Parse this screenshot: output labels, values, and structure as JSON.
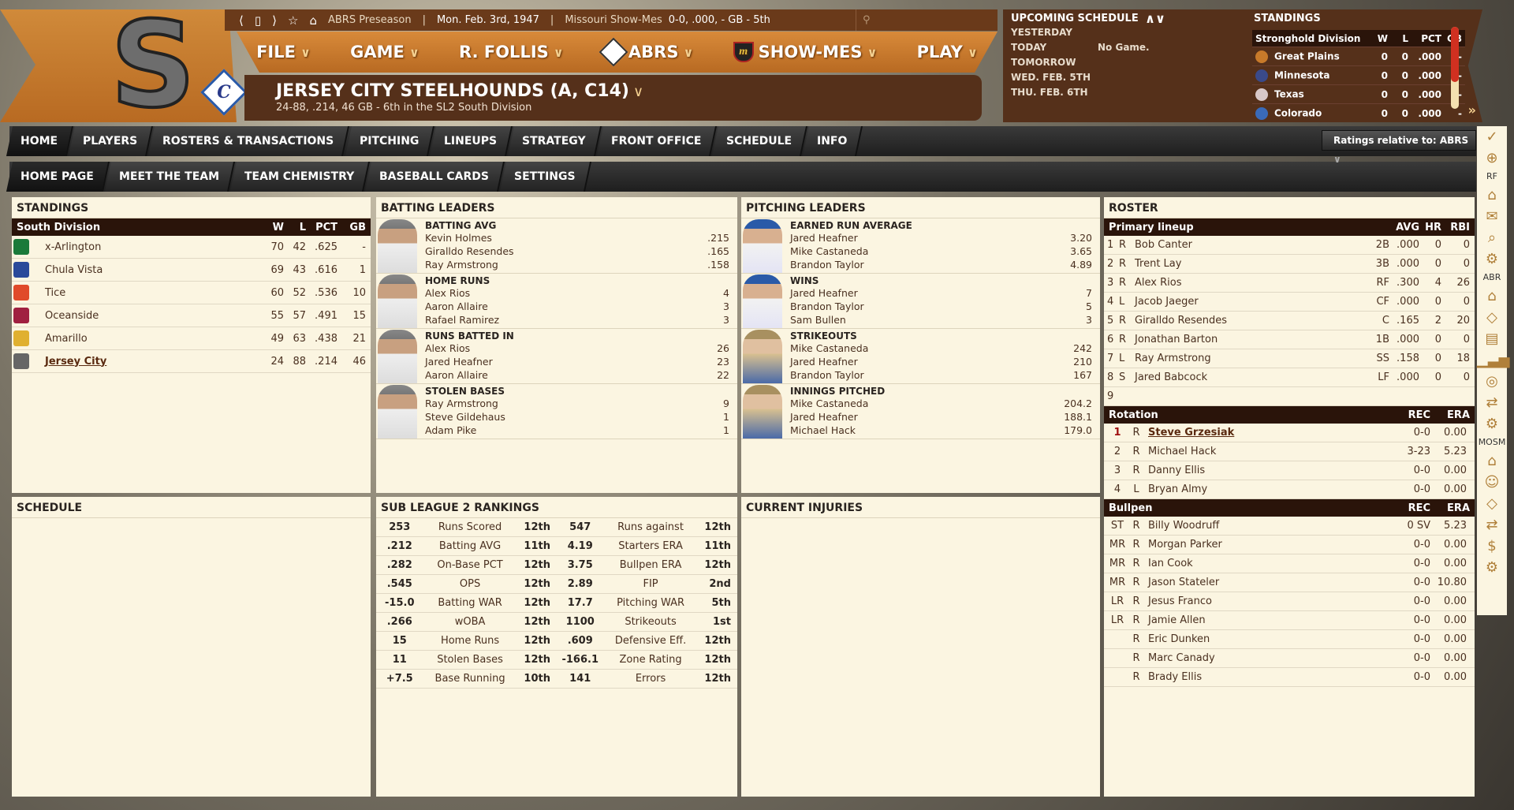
{
  "topbar": {
    "season": "ABRS Preseason",
    "date": "Mon. Feb. 3rd, 1947",
    "team": "Missouri Show-Mes",
    "record": "0-0, .000, - GB - 5th",
    "icons": [
      "back-icon",
      "page-icon",
      "forward-icon",
      "star-icon",
      "home-icon",
      "search-icon"
    ]
  },
  "logos": {
    "team_logo": "S",
    "affiliate_logo": "C"
  },
  "menu": [
    {
      "label": "FILE"
    },
    {
      "label": "GAME"
    },
    {
      "label": "R. FOLLIS"
    },
    {
      "label": "ABRS",
      "logo": "A"
    },
    {
      "label": "SHOW-MES",
      "logo": "M"
    },
    {
      "label": "PLAY"
    }
  ],
  "team": {
    "name": "JERSEY CITY STEELHOUNDS (A, C14)",
    "summary": "24-88, .214, 46 GB - 6th in the SL2 South Division"
  },
  "upcoming": {
    "title": "UPCOMING SCHEDULE",
    "rows": [
      {
        "day": "YESTERDAY",
        "game": ""
      },
      {
        "day": "TODAY",
        "game": "No Game."
      },
      {
        "day": "TOMORROW",
        "game": ""
      },
      {
        "day": "WED. FEB. 5TH",
        "game": ""
      },
      {
        "day": "THU. FEB. 6TH",
        "game": ""
      }
    ]
  },
  "mini_standings": {
    "title": "STANDINGS",
    "division": "Stronghold Division",
    "cols": [
      "W",
      "L",
      "PCT",
      "GB"
    ],
    "rows": [
      {
        "team": "Great Plains",
        "w": "0",
        "l": "0",
        "pct": ".000",
        "gb": "-",
        "color": "#c87a2a"
      },
      {
        "team": "Minnesota",
        "w": "0",
        "l": "0",
        "pct": ".000",
        "gb": "-",
        "color": "#3a4a8a"
      },
      {
        "team": "Texas",
        "w": "0",
        "l": "0",
        "pct": ".000",
        "gb": "-",
        "color": "#d8c8c8"
      },
      {
        "team": "Colorado",
        "w": "0",
        "l": "0",
        "pct": ".000",
        "gb": "-",
        "color": "#3a6ab8"
      }
    ]
  },
  "nav": {
    "primary": [
      "HOME",
      "PLAYERS",
      "ROSTERS & TRANSACTIONS",
      "PITCHING",
      "LINEUPS",
      "STRATEGY",
      "FRONT OFFICE",
      "SCHEDULE",
      "INFO"
    ],
    "secondary": [
      "HOME PAGE",
      "MEET THE TEAM",
      "TEAM CHEMISTRY",
      "BASEBALL CARDS",
      "SETTINGS"
    ],
    "ratings": "Ratings relative to: ABRS"
  },
  "sidebar": {
    "items": [
      "check-icon",
      "globe-icon",
      "RF",
      "home-icon",
      "mail-icon",
      "search-icon",
      "gear-icon",
      "ABR",
      "home-icon",
      "diamond-icon",
      "card-icon",
      "chart-icon",
      "ball-icon",
      "trade-icon",
      "gear-icon",
      "MOSM",
      "home-icon",
      "scout-icon",
      "diamond-icon",
      "trade-icon",
      "dollar-icon",
      "gear-icon"
    ]
  },
  "standings": {
    "title": "STANDINGS",
    "division": "South Division",
    "cols": [
      "W",
      "L",
      "PCT",
      "GB"
    ],
    "rows": [
      {
        "team": "x-Arlington",
        "w": "70",
        "l": "42",
        "pct": ".625",
        "gb": "-",
        "color": "#1a7a3a"
      },
      {
        "team": "Chula Vista",
        "w": "69",
        "l": "43",
        "pct": ".616",
        "gb": "1",
        "color": "#2a4a9a"
      },
      {
        "team": "Tice",
        "w": "60",
        "l": "52",
        "pct": ".536",
        "gb": "10",
        "color": "#e04a2a"
      },
      {
        "team": "Oceanside",
        "w": "55",
        "l": "57",
        "pct": ".491",
        "gb": "15",
        "color": "#a02040"
      },
      {
        "team": "Amarillo",
        "w": "49",
        "l": "63",
        "pct": ".438",
        "gb": "21",
        "color": "#e0b030"
      },
      {
        "team": "Jersey City",
        "w": "24",
        "l": "88",
        "pct": ".214",
        "gb": "46",
        "color": "#666666",
        "highlight": true
      }
    ]
  },
  "batting_leaders": {
    "title": "BATTING LEADERS",
    "categories": [
      {
        "title": "BATTING AVG",
        "leaders": [
          {
            "name": "Kevin Holmes",
            "value": ".215"
          },
          {
            "name": "Giralldo Resendes",
            "value": ".165"
          },
          {
            "name": "Ray Armstrong",
            "value": ".158"
          }
        ]
      },
      {
        "title": "HOME RUNS",
        "leaders": [
          {
            "name": "Alex Rios",
            "value": "4"
          },
          {
            "name": "Aaron Allaire",
            "value": "3"
          },
          {
            "name": "Rafael Ramirez",
            "value": "3"
          }
        ]
      },
      {
        "title": "RUNS BATTED IN",
        "leaders": [
          {
            "name": "Alex Rios",
            "value": "26"
          },
          {
            "name": "Jared Heafner",
            "value": "23"
          },
          {
            "name": "Aaron Allaire",
            "value": "22"
          }
        ]
      },
      {
        "title": "STOLEN BASES",
        "leaders": [
          {
            "name": "Ray Armstrong",
            "value": "9"
          },
          {
            "name": "Steve Gildehaus",
            "value": "1"
          },
          {
            "name": "Adam Pike",
            "value": "1"
          }
        ]
      }
    ]
  },
  "pitching_leaders": {
    "title": "PITCHING LEADERS",
    "categories": [
      {
        "title": "EARNED RUN AVERAGE",
        "leaders": [
          {
            "name": "Jared Heafner",
            "value": "3.20"
          },
          {
            "name": "Mike Castaneda",
            "value": "3.65"
          },
          {
            "name": "Brandon Taylor",
            "value": "4.89"
          }
        ]
      },
      {
        "title": "WINS",
        "leaders": [
          {
            "name": "Jared Heafner",
            "value": "7"
          },
          {
            "name": "Brandon Taylor",
            "value": "5"
          },
          {
            "name": "Sam Bullen",
            "value": "3"
          }
        ]
      },
      {
        "title": "STRIKEOUTS",
        "leaders": [
          {
            "name": "Mike Castaneda",
            "value": "242"
          },
          {
            "name": "Jared Heafner",
            "value": "210"
          },
          {
            "name": "Brandon Taylor",
            "value": "167"
          }
        ]
      },
      {
        "title": "INNINGS PITCHED",
        "leaders": [
          {
            "name": "Mike Castaneda",
            "value": "204.2"
          },
          {
            "name": "Jared Heafner",
            "value": "188.1"
          },
          {
            "name": "Michael Hack",
            "value": "179.0"
          }
        ]
      }
    ]
  },
  "roster": {
    "title": "ROSTER",
    "lineup": {
      "title": "Primary lineup",
      "cols": [
        "AVG",
        "HR",
        "RBI"
      ],
      "rows": [
        {
          "n": "1",
          "h": "R",
          "name": "Bob Canter",
          "pos": "2B",
          "avg": ".000",
          "hr": "0",
          "rbi": "0"
        },
        {
          "n": "2",
          "h": "R",
          "name": "Trent Lay",
          "pos": "3B",
          "avg": ".000",
          "hr": "0",
          "rbi": "0"
        },
        {
          "n": "3",
          "h": "R",
          "name": "Alex Rios",
          "pos": "RF",
          "avg": ".300",
          "hr": "4",
          "rbi": "26"
        },
        {
          "n": "4",
          "h": "L",
          "name": "Jacob Jaeger",
          "pos": "CF",
          "avg": ".000",
          "hr": "0",
          "rbi": "0"
        },
        {
          "n": "5",
          "h": "R",
          "name": "Giralldo Resendes",
          "pos": "C",
          "avg": ".165",
          "hr": "2",
          "rbi": "20"
        },
        {
          "n": "6",
          "h": "R",
          "name": "Jonathan Barton",
          "pos": "1B",
          "avg": ".000",
          "hr": "0",
          "rbi": "0"
        },
        {
          "n": "7",
          "h": "L",
          "name": "Ray Armstrong",
          "pos": "SS",
          "avg": ".158",
          "hr": "0",
          "rbi": "18"
        },
        {
          "n": "8",
          "h": "S",
          "name": "Jared Babcock",
          "pos": "LF",
          "avg": ".000",
          "hr": "0",
          "rbi": "0"
        },
        {
          "n": "9",
          "h": "",
          "name": "",
          "pos": "",
          "avg": "",
          "hr": "",
          "rbi": ""
        }
      ]
    },
    "rotation": {
      "title": "Rotation",
      "cols": [
        "REC",
        "ERA"
      ],
      "rows": [
        {
          "n": "1",
          "h": "R",
          "name": "Steve Grzesiak",
          "rec": "0-0",
          "era": "0.00",
          "highlight": true
        },
        {
          "n": "2",
          "h": "R",
          "name": "Michael Hack",
          "rec": "3-23",
          "era": "5.23"
        },
        {
          "n": "3",
          "h": "R",
          "name": "Danny Ellis",
          "rec": "0-0",
          "era": "0.00"
        },
        {
          "n": "4",
          "h": "L",
          "name": "Bryan Almy",
          "rec": "0-0",
          "era": "0.00"
        }
      ]
    },
    "bullpen": {
      "title": "Bullpen",
      "cols": [
        "REC",
        "ERA"
      ],
      "rows": [
        {
          "n": "ST",
          "h": "R",
          "name": "Billy Woodruff",
          "rec": "0 SV",
          "era": "5.23"
        },
        {
          "n": "MR",
          "h": "R",
          "name": "Morgan Parker",
          "rec": "0-0",
          "era": "0.00"
        },
        {
          "n": "MR",
          "h": "R",
          "name": "Ian Cook",
          "rec": "0-0",
          "era": "0.00"
        },
        {
          "n": "MR",
          "h": "R",
          "name": "Jason Stateler",
          "rec": "0-0",
          "era": "10.80"
        },
        {
          "n": "LR",
          "h": "R",
          "name": "Jesus Franco",
          "rec": "0-0",
          "era": "0.00"
        },
        {
          "n": "LR",
          "h": "R",
          "name": "Jamie Allen",
          "rec": "0-0",
          "era": "0.00"
        },
        {
          "n": "",
          "h": "R",
          "name": "Eric Dunken",
          "rec": "0-0",
          "era": "0.00"
        },
        {
          "n": "",
          "h": "R",
          "name": "Marc Canady",
          "rec": "0-0",
          "era": "0.00"
        },
        {
          "n": "",
          "h": "R",
          "name": "Brady Ellis",
          "rec": "0-0",
          "era": "0.00"
        }
      ]
    }
  },
  "schedule": {
    "title": "SCHEDULE"
  },
  "rankings": {
    "title": "SUB LEAGUE 2 RANKINGS",
    "rows": [
      [
        "253",
        "Runs Scored",
        "12th",
        "547",
        "Runs against",
        "12th"
      ],
      [
        ".212",
        "Batting AVG",
        "11th",
        "4.19",
        "Starters ERA",
        "11th"
      ],
      [
        ".282",
        "On-Base PCT",
        "12th",
        "3.75",
        "Bullpen ERA",
        "12th"
      ],
      [
        ".545",
        "OPS",
        "12th",
        "2.89",
        "FIP",
        "2nd"
      ],
      [
        "-15.0",
        "Batting WAR",
        "12th",
        "17.7",
        "Pitching WAR",
        "5th"
      ],
      [
        ".266",
        "wOBA",
        "12th",
        "1100",
        "Strikeouts",
        "1st"
      ],
      [
        "15",
        "Home Runs",
        "12th",
        ".609",
        "Defensive Eff.",
        "12th"
      ],
      [
        "11",
        "Stolen Bases",
        "12th",
        "-166.1",
        "Zone Rating",
        "12th"
      ],
      [
        "+7.5",
        "Base Running",
        "10th",
        "141",
        "Errors",
        "12th"
      ]
    ]
  },
  "injuries": {
    "title": "CURRENT INJURIES"
  }
}
